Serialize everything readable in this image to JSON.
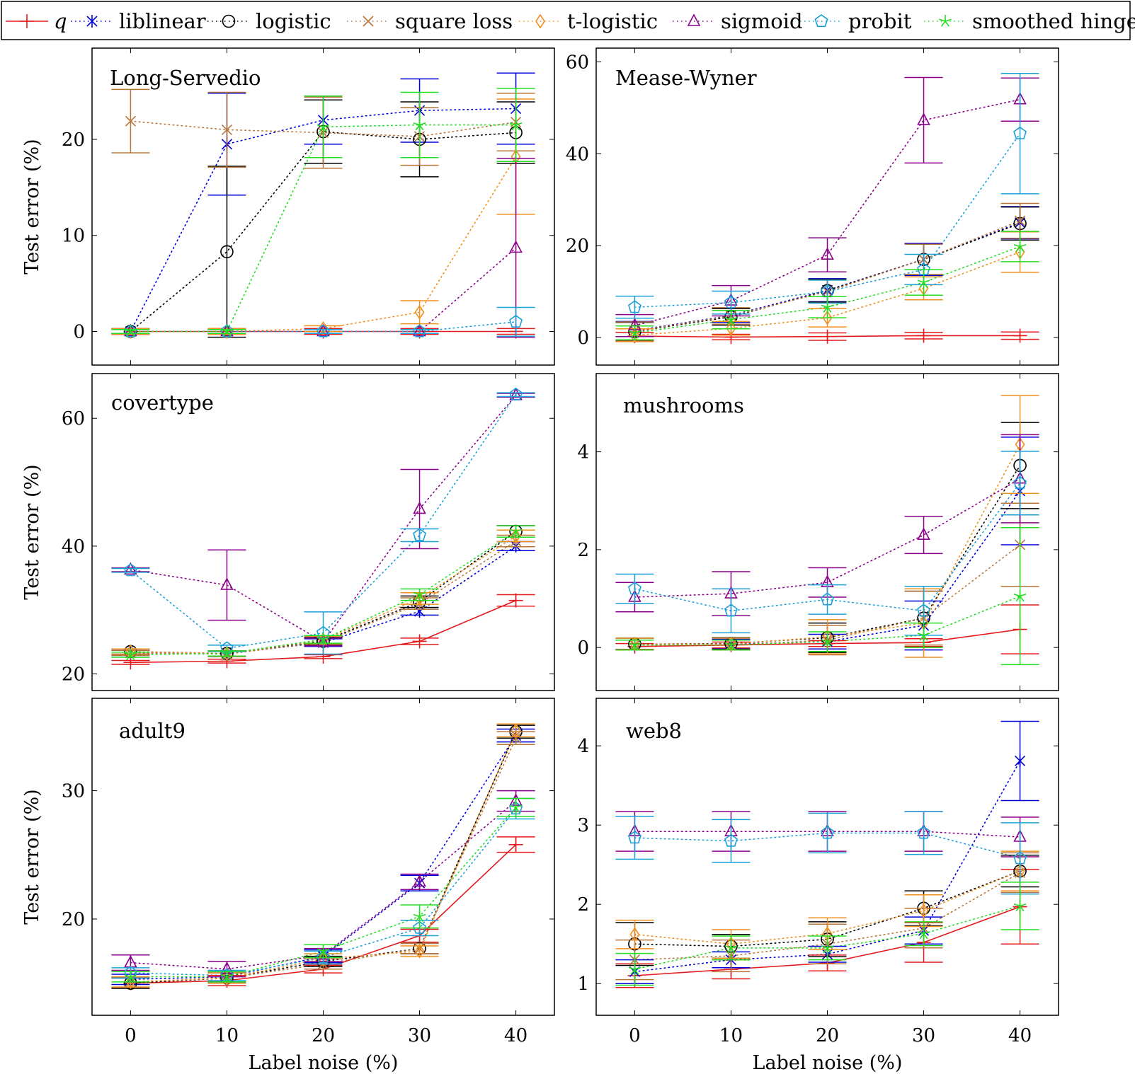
{
  "legend": [
    {
      "key": "q",
      "label": "q",
      "color": "#e41a1c",
      "marker": "plus",
      "line": "solid"
    },
    {
      "key": "liblinear",
      "label": "liblinear",
      "color": "#0000dd",
      "marker": "star",
      "line": "dotted"
    },
    {
      "key": "logistic",
      "label": "logistic",
      "color": "#000000",
      "marker": "circle",
      "line": "dotted"
    },
    {
      "key": "square",
      "label": "square loss",
      "color": "#b8763a",
      "marker": "x",
      "line": "dotted"
    },
    {
      "key": "tlogistic",
      "label": "t-logistic",
      "color": "#f0901e",
      "marker": "diamond",
      "line": "dotted"
    },
    {
      "key": "sigmoid",
      "label": "sigmoid",
      "color": "#8b008b",
      "marker": "triangle",
      "line": "dotted"
    },
    {
      "key": "probit",
      "label": "probit",
      "color": "#1ca0d8",
      "marker": "pentagon",
      "line": "dotted"
    },
    {
      "key": "hinge",
      "label": "smoothed hinge",
      "color": "#22dd22",
      "marker": "asterisk",
      "line": "dotted"
    }
  ],
  "chart_data": [
    {
      "type": "line",
      "title": "Long-Servedio",
      "xlabel": "",
      "ylabel": "Test error (%)",
      "x": [
        0,
        10,
        20,
        30,
        40
      ],
      "xlim": [
        -4,
        44
      ],
      "ylim": [
        -3.5,
        29.5
      ],
      "yticks": [
        0,
        10,
        20
      ],
      "series": [
        {
          "key": "q",
          "values": [
            0,
            0,
            0,
            0,
            0
          ],
          "err": [
            0.3,
            0.3,
            0.3,
            0.3,
            0.3
          ]
        },
        {
          "key": "liblinear",
          "values": [
            0,
            19.5,
            22,
            23,
            23.2
          ],
          "err": [
            0.3,
            5.3,
            2.5,
            3.3,
            3.7
          ]
        },
        {
          "key": "logistic",
          "values": [
            0,
            8.3,
            20.8,
            20,
            20.7
          ],
          "err": [
            0.2,
            8.9,
            3.3,
            3.9,
            3.2
          ]
        },
        {
          "key": "square",
          "values": [
            21.9,
            21,
            20.7,
            20.3,
            21.8
          ],
          "err": [
            3.3,
            3.9,
            3.7,
            3,
            3
          ]
        },
        {
          "key": "tlogistic",
          "values": [
            0,
            0,
            0.3,
            2,
            18.2
          ],
          "err": [
            0.3,
            0.3,
            0.3,
            1.2,
            6
          ]
        },
        {
          "key": "sigmoid",
          "values": [
            0,
            0,
            0,
            0,
            8.7
          ],
          "err": [
            0.2,
            0.2,
            0.2,
            0.2,
            9.3
          ]
        },
        {
          "key": "probit",
          "values": [
            0,
            0,
            0,
            0,
            1
          ],
          "err": [
            0.2,
            0.2,
            0.2,
            0.2,
            1.5
          ]
        },
        {
          "key": "hinge",
          "values": [
            0,
            0,
            21.3,
            21.5,
            21.5
          ],
          "err": [
            0.2,
            0.2,
            3.2,
            3.4,
            3.8
          ]
        }
      ]
    },
    {
      "type": "line",
      "title": "Mease-Wyner",
      "xlabel": "",
      "ylabel": "",
      "x": [
        0,
        10,
        20,
        30,
        40
      ],
      "xlim": [
        -4,
        44
      ],
      "ylim": [
        -6,
        63
      ],
      "yticks": [
        0,
        20,
        40,
        60
      ],
      "series": [
        {
          "key": "q",
          "values": [
            0.3,
            0.1,
            0.2,
            0.4,
            0.4
          ],
          "err": [
            0.8,
            0.6,
            0.8,
            0.7,
            0.8
          ]
        },
        {
          "key": "liblinear",
          "values": [
            1.5,
            4.8,
            10.3,
            17,
            25
          ],
          "err": [
            2,
            1.5,
            2.5,
            3.5,
            3.5
          ]
        },
        {
          "key": "logistic",
          "values": [
            1.3,
            4.5,
            10.2,
            17,
            24.8
          ],
          "err": [
            2,
            1.8,
            2.5,
            3.3,
            3.6
          ]
        },
        {
          "key": "square",
          "values": [
            1.4,
            4.7,
            10,
            17,
            25.4
          ],
          "err": [
            2,
            1.8,
            2.5,
            3.3,
            3.8
          ]
        },
        {
          "key": "tlogistic",
          "values": [
            0.5,
            2,
            4.3,
            10.7,
            18.6
          ],
          "err": [
            1.4,
            1.5,
            2,
            2.5,
            4.4
          ]
        },
        {
          "key": "sigmoid",
          "values": [
            2.6,
            8,
            18,
            47.3,
            51.8
          ],
          "err": [
            2.4,
            3.3,
            3.7,
            9.3,
            4.7
          ]
        },
        {
          "key": "probit",
          "values": [
            6.6,
            7.6,
            10,
            14.8,
            44.4
          ],
          "err": [
            2.4,
            2.5,
            2.5,
            3.3,
            13.1
          ]
        },
        {
          "key": "hinge",
          "values": [
            1,
            3.9,
            6.6,
            12,
            19.8
          ],
          "err": [
            1.5,
            2,
            2.3,
            2.8,
            3.3
          ]
        }
      ]
    },
    {
      "type": "line",
      "title": "covertype",
      "xlabel": "",
      "ylabel": "Test error (%)",
      "x": [
        0,
        10,
        20,
        30,
        40
      ],
      "xlim": [
        -4,
        44
      ],
      "ylim": [
        17.4,
        67
      ],
      "yticks": [
        20,
        40,
        60
      ],
      "series": [
        {
          "key": "q",
          "values": [
            21.8,
            22,
            22.7,
            25.1,
            31.5
          ],
          "err": [
            0.3,
            0.3,
            0.3,
            0.5,
            0.9
          ]
        },
        {
          "key": "liblinear",
          "values": [
            23.3,
            23.2,
            24.9,
            29.8,
            40
          ],
          "err": [
            0.4,
            0.4,
            0.6,
            0.6,
            0.7
          ]
        },
        {
          "key": "logistic",
          "values": [
            23.5,
            23.2,
            25.1,
            31.3,
            42.3
          ],
          "err": [
            0.4,
            0.4,
            0.6,
            0.9,
            0.9
          ]
        },
        {
          "key": "square",
          "values": [
            23.3,
            23.1,
            25,
            31,
            40.8
          ],
          "err": [
            0.4,
            0.4,
            0.6,
            0.9,
            0.9
          ]
        },
        {
          "key": "tlogistic",
          "values": [
            23.5,
            23.2,
            25.3,
            31.8,
            41.6
          ],
          "err": [
            0.4,
            0.4,
            0.6,
            0.9,
            0.9
          ]
        },
        {
          "key": "sigmoid",
          "values": [
            36.3,
            33.9,
            25,
            45.8,
            63.6
          ],
          "err": [
            0.3,
            5.5,
            0.6,
            6.2,
            0.3
          ]
        },
        {
          "key": "probit",
          "values": [
            36.2,
            24,
            26.4,
            41.7,
            63.7
          ],
          "err": [
            0.3,
            0.5,
            3.3,
            1,
            0.3
          ]
        },
        {
          "key": "hinge",
          "values": [
            23,
            23.2,
            25.4,
            32.4,
            42.3
          ],
          "err": [
            0.4,
            0.4,
            0.6,
            0.9,
            0.9
          ]
        }
      ]
    },
    {
      "type": "line",
      "title": "mushrooms",
      "xlabel": "",
      "ylabel": "",
      "x": [
        0,
        10,
        20,
        30,
        40
      ],
      "xlim": [
        -4,
        44
      ],
      "ylim": [
        -0.88,
        5.6
      ],
      "yticks": [
        0,
        2,
        4
      ],
      "series": [
        {
          "key": "q",
          "values": [
            0.02,
            0.05,
            0.08,
            0.1,
            0.37
          ],
          "err": [
            0.06,
            0.06,
            0.06,
            0.08,
            0.5
          ]
        },
        {
          "key": "liblinear",
          "values": [
            0.05,
            0.07,
            0.12,
            0.45,
            3.2
          ],
          "err": [
            0.1,
            0.1,
            0.15,
            0.5,
            1.1
          ]
        },
        {
          "key": "logistic",
          "values": [
            0.07,
            0.08,
            0.2,
            0.6,
            3.72
          ],
          "err": [
            0.12,
            0.12,
            0.3,
            0.55,
            0.88
          ]
        },
        {
          "key": "square",
          "values": [
            0.05,
            0.05,
            0.15,
            0.6,
            2.1
          ],
          "err": [
            0.1,
            0.1,
            0.3,
            0.55,
            0.85
          ]
        },
        {
          "key": "tlogistic",
          "values": [
            0.07,
            0.07,
            0.22,
            0.5,
            4.15
          ],
          "err": [
            0.12,
            0.12,
            0.35,
            0.7,
            1
          ]
        },
        {
          "key": "sigmoid",
          "values": [
            1.03,
            1.1,
            1.33,
            2.3,
            3.45
          ],
          "err": [
            0.3,
            0.45,
            0.3,
            0.38,
            0.9
          ]
        },
        {
          "key": "probit",
          "values": [
            1.2,
            0.75,
            0.98,
            0.75,
            3.36
          ],
          "err": [
            0.3,
            0.45,
            0.3,
            0.5,
            0.65
          ]
        },
        {
          "key": "hinge",
          "values": [
            0.05,
            0.05,
            0.12,
            0.25,
            1.05
          ],
          "err": [
            0.1,
            0.1,
            0.2,
            0.25,
            1.4
          ]
        }
      ]
    },
    {
      "type": "line",
      "title": "adult9",
      "xlabel": "Label noise (%)",
      "ylabel": "Test error (%)",
      "x": [
        0,
        10,
        20,
        30,
        40
      ],
      "xlim": [
        -4,
        44
      ],
      "ylim": [
        12.5,
        37.2
      ],
      "yticks": [
        20,
        30
      ],
      "series": [
        {
          "key": "q",
          "values": [
            15,
            15.2,
            16.1,
            18.7,
            25.8
          ],
          "err": [
            0.4,
            0.4,
            0.3,
            0.5,
            0.6
          ]
        },
        {
          "key": "liblinear",
          "values": [
            15.3,
            15.5,
            17.1,
            22.8,
            34.3
          ],
          "err": [
            0.4,
            0.4,
            0.5,
            0.6,
            0.5
          ]
        },
        {
          "key": "logistic",
          "values": [
            15,
            15.4,
            16.7,
            17.7,
            34.6
          ],
          "err": [
            0.4,
            0.4,
            0.4,
            0.4,
            0.5
          ]
        },
        {
          "key": "square",
          "values": [
            15.1,
            15.4,
            16.5,
            17.7,
            34.1
          ],
          "err": [
            0.4,
            0.4,
            0.4,
            0.4,
            0.5
          ]
        },
        {
          "key": "tlogistic",
          "values": [
            15.1,
            15.4,
            16.9,
            17.5,
            34.7
          ],
          "err": [
            0.4,
            0.4,
            0.4,
            0.4,
            0.5
          ]
        },
        {
          "key": "sigmoid",
          "values": [
            16.6,
            16.1,
            17.2,
            22.9,
            29.2
          ],
          "err": [
            0.6,
            0.6,
            0.5,
            0.6,
            0.8
          ]
        },
        {
          "key": "probit",
          "values": [
            15.8,
            15.6,
            17,
            19.3,
            28.6
          ],
          "err": [
            0.4,
            0.4,
            0.5,
            0.6,
            0.8
          ]
        },
        {
          "key": "hinge",
          "values": [
            15.5,
            15.5,
            17.5,
            20.2,
            28.7
          ],
          "err": [
            0.4,
            0.4,
            0.5,
            0.9,
            0.7
          ]
        }
      ]
    },
    {
      "type": "line",
      "title": "web8",
      "xlabel": "Label noise (%)",
      "ylabel": "",
      "x": [
        0,
        10,
        20,
        30,
        40
      ],
      "xlim": [
        -4,
        44
      ],
      "ylim": [
        0.6,
        4.6
      ],
      "yticks": [
        1,
        2,
        3,
        4
      ],
      "series": [
        {
          "key": "q",
          "values": [
            1.1,
            1.18,
            1.26,
            1.52,
            1.97
          ],
          "err": [
            0.15,
            0.12,
            0.1,
            0.25,
            0.47
          ]
        },
        {
          "key": "liblinear",
          "values": [
            1.15,
            1.3,
            1.37,
            1.67,
            3.81
          ],
          "err": [
            0.15,
            0.1,
            0.1,
            0.17,
            0.5
          ]
        },
        {
          "key": "logistic",
          "values": [
            1.5,
            1.47,
            1.56,
            1.95,
            2.42
          ],
          "err": [
            0.27,
            0.15,
            0.22,
            0.22,
            0.2
          ]
        },
        {
          "key": "square",
          "values": [
            1.3,
            1.35,
            1.5,
            1.7,
            2.4
          ],
          "err": [
            0.25,
            0.2,
            0.25,
            0.25,
            0.25
          ]
        },
        {
          "key": "tlogistic",
          "values": [
            1.62,
            1.5,
            1.63,
            1.92,
            2.42
          ],
          "err": [
            0.18,
            0.18,
            0.2,
            0.2,
            0.25
          ]
        },
        {
          "key": "sigmoid",
          "values": [
            2.92,
            2.92,
            2.92,
            2.92,
            2.85
          ],
          "err": [
            0.25,
            0.25,
            0.25,
            0.25,
            0.25
          ]
        },
        {
          "key": "probit",
          "values": [
            2.84,
            2.8,
            2.9,
            2.9,
            2.58
          ],
          "err": [
            0.27,
            0.27,
            0.25,
            0.27,
            0.45
          ]
        },
        {
          "key": "hinge",
          "values": [
            1.18,
            1.45,
            1.45,
            1.63,
            1.98
          ],
          "err": [
            0.2,
            0.15,
            0.15,
            0.15,
            0.3
          ]
        }
      ]
    }
  ]
}
